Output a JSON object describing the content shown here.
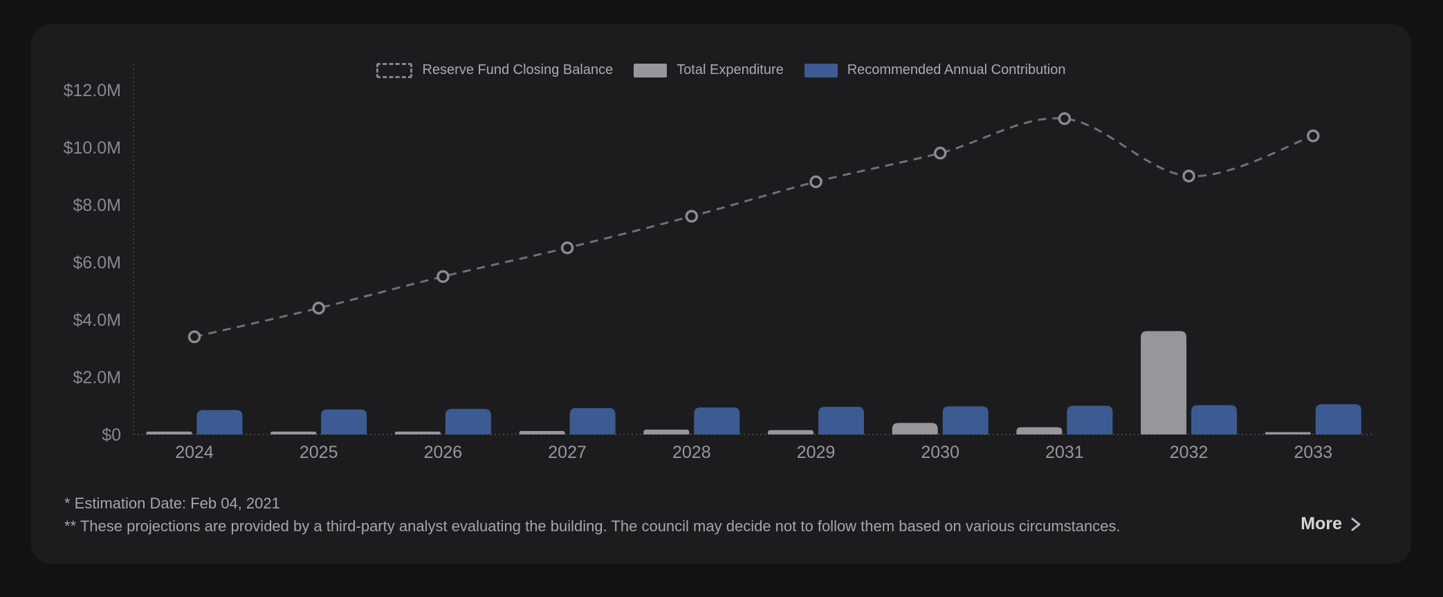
{
  "legend": {
    "items": [
      {
        "label": "Reserve Fund Closing Balance",
        "type": "dashed-line",
        "color": "#85868c"
      },
      {
        "label": "Total Expenditure",
        "type": "bar",
        "color": "#97979b"
      },
      {
        "label": "Recommended Annual Contribution",
        "type": "bar",
        "color": "#3c5b92"
      }
    ]
  },
  "chart_data": {
    "type": "bar+line combo",
    "categories": [
      "2024",
      "2025",
      "2026",
      "2027",
      "2028",
      "2029",
      "2030",
      "2031",
      "2032",
      "2033"
    ],
    "series": [
      {
        "name": "Reserve Fund Closing Balance",
        "type": "line",
        "style": "dashed",
        "marker": "open-circle",
        "color": "#6f7076",
        "values": [
          3.4,
          4.4,
          5.5,
          6.5,
          7.6,
          8.8,
          9.8,
          11.0,
          9.0,
          10.4
        ]
      },
      {
        "name": "Total Expenditure",
        "type": "bar",
        "color": "#97979b",
        "values": [
          0.1,
          0.1,
          0.1,
          0.12,
          0.17,
          0.15,
          0.4,
          0.25,
          3.6,
          0.08
        ]
      },
      {
        "name": "Recommended Annual Contribution",
        "type": "bar",
        "color": "#3c5b92",
        "values": [
          0.85,
          0.87,
          0.89,
          0.92,
          0.94,
          0.96,
          0.98,
          1.0,
          1.02,
          1.05
        ]
      }
    ],
    "values_unit": "$M",
    "title": "",
    "xlabel": "",
    "ylabel": "",
    "ylim": [
      0,
      12.8
    ],
    "grid": "off",
    "legend_position": "top-center",
    "y_ticks": [
      {
        "label": "$12.0M",
        "value": 12
      },
      {
        "label": "$10.0M",
        "value": 10
      },
      {
        "label": "$8.0M",
        "value": 8
      },
      {
        "label": "$6.0M",
        "value": 6
      },
      {
        "label": "$4.0M",
        "value": 4
      },
      {
        "label": "$2.0M",
        "value": 2
      },
      {
        "label": "$0",
        "value": 0
      }
    ]
  },
  "footnotes": {
    "line1": "* Estimation Date: Feb 04, 2021",
    "line2": "** These projections are provided by a third-party analyst evaluating the building. The council may decide not to follow them based on various circumstances."
  },
  "more": {
    "label": "More"
  }
}
